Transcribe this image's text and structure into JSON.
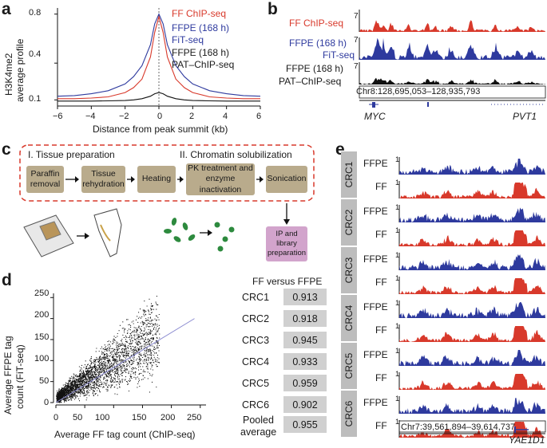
{
  "panels": {
    "a": "a",
    "b": "b",
    "c": "c",
    "d": "d",
    "e": "e"
  },
  "colors": {
    "ff": "#d8392b",
    "ffpe": "#2e3a9e",
    "black": "#111111"
  },
  "panel_a": {
    "ylabel_line1": "H3K4me2",
    "ylabel_line2": "average profile",
    "xlabel": "Distance from peak summit (kb)",
    "y_ticks": [
      "0.8",
      "0.4",
      "0.1"
    ],
    "x_ticks": [
      "−6",
      "−4",
      "−2",
      "0",
      "2",
      "4",
      "6"
    ],
    "legend": {
      "ff": "FF ChIP-seq",
      "ffpe_fit_1": "FFPE (168 h)",
      "ffpe_fit_2": "FiT-seq",
      "ffpe_pat_1": "FFPE (168 h)",
      "ffpe_pat_2": "PAT–ChIP-seq"
    }
  },
  "panel_b": {
    "track1": "FF ChIP-seq",
    "track2_l1": "FFPE (168 h)",
    "track2_l2": "FiT-seq",
    "track3_l1": "FFPE (168 h)",
    "track3_l2": "PAT–ChIP-seq",
    "scale": "7",
    "coords": "Chr8:128,695,053–128,935,793",
    "gene1": "MYC",
    "gene2": "PVT1"
  },
  "panel_c": {
    "section1": "I. Tissue preparation",
    "section2": "II. Chromatin solubilization",
    "steps": [
      "Paraffin removal",
      "Tissue rehydration",
      "Heating",
      "PK treatment and enzyme inactivation",
      "Sonication"
    ],
    "final_step": "IP and library preparation"
  },
  "panel_d": {
    "ylabel_line1": "Average FFPE tag",
    "ylabel_line2": "count  (FiT-seq)",
    "xlabel": "Average FF tag count (ChIP-seq)",
    "x_ticks": [
      "0",
      "50",
      "100",
      "150",
      "200",
      "250"
    ],
    "y_ticks": [
      "250",
      "200",
      "150",
      "100",
      "50",
      "0"
    ],
    "table_title": "FF versus FFPE",
    "rows": [
      {
        "label": "CRC1",
        "value": "0.913"
      },
      {
        "label": "CRC2",
        "value": "0.918"
      },
      {
        "label": "CRC3",
        "value": "0.945"
      },
      {
        "label": "CRC4",
        "value": "0.933"
      },
      {
        "label": "CRC5",
        "value": "0.959"
      },
      {
        "label": "CRC6",
        "value": "0.902"
      }
    ],
    "pooled_l1": "Pooled",
    "pooled_l2": "average",
    "pooled_value": "0.955"
  },
  "panel_e": {
    "samples": [
      "CRC1",
      "CRC2",
      "CRC3",
      "CRC4",
      "CRC5",
      "CRC6"
    ],
    "ffpe": "FFPE",
    "ff": "FF",
    "scale": "1",
    "coords": "Chr7:39,561,894–39,614,737",
    "gene": "YAE1D1"
  },
  "chart_data": [
    {
      "type": "line",
      "title": "",
      "xlabel": "Distance from peak summit (kb)",
      "ylabel": "H3K4me2 average profile",
      "xlim": [
        -6,
        6
      ],
      "ylim": [
        0.05,
        0.85
      ],
      "x": [
        -6,
        -5,
        -4,
        -3,
        -2,
        -1.5,
        -1,
        -0.5,
        -0.25,
        0,
        0.25,
        0.5,
        1,
        1.5,
        2,
        3,
        4,
        5,
        6
      ],
      "series": [
        {
          "name": "FF ChIP-seq",
          "color": "#d8392b",
          "values": [
            0.11,
            0.11,
            0.115,
            0.125,
            0.16,
            0.2,
            0.27,
            0.45,
            0.65,
            0.78,
            0.65,
            0.45,
            0.27,
            0.2,
            0.16,
            0.125,
            0.115,
            0.11,
            0.11
          ]
        },
        {
          "name": "FFPE (168 h) FiT-seq",
          "color": "#2e3a9e",
          "values": [
            0.13,
            0.135,
            0.15,
            0.175,
            0.23,
            0.29,
            0.38,
            0.55,
            0.72,
            0.8,
            0.72,
            0.55,
            0.38,
            0.29,
            0.23,
            0.175,
            0.15,
            0.135,
            0.13
          ]
        },
        {
          "name": "FFPE (168 h) PAT–ChIP-seq",
          "color": "#111111",
          "values": [
            0.09,
            0.09,
            0.09,
            0.092,
            0.095,
            0.1,
            0.11,
            0.13,
            0.15,
            0.16,
            0.15,
            0.13,
            0.11,
            0.1,
            0.095,
            0.092,
            0.09,
            0.09,
            0.09
          ]
        }
      ]
    },
    {
      "type": "scatter",
      "title": "",
      "xlabel": "Average FF tag count (ChIP-seq)",
      "ylabel": "Average FFPE tag count (FiT-seq)",
      "xlim": [
        0,
        260
      ],
      "ylim": [
        0,
        260
      ],
      "trend": {
        "x": [
          0,
          240
        ],
        "y": [
          0,
          200
        ]
      },
      "description_points": "dense cloud concentrated near origin, spread increasing with x"
    },
    {
      "type": "table",
      "title": "FF versus FFPE",
      "rows": [
        [
          "CRC1",
          0.913
        ],
        [
          "CRC2",
          0.918
        ],
        [
          "CRC3",
          0.945
        ],
        [
          "CRC4",
          0.933
        ],
        [
          "CRC5",
          0.959
        ],
        [
          "CRC6",
          0.902
        ],
        [
          "Pooled average",
          0.955
        ]
      ]
    }
  ]
}
